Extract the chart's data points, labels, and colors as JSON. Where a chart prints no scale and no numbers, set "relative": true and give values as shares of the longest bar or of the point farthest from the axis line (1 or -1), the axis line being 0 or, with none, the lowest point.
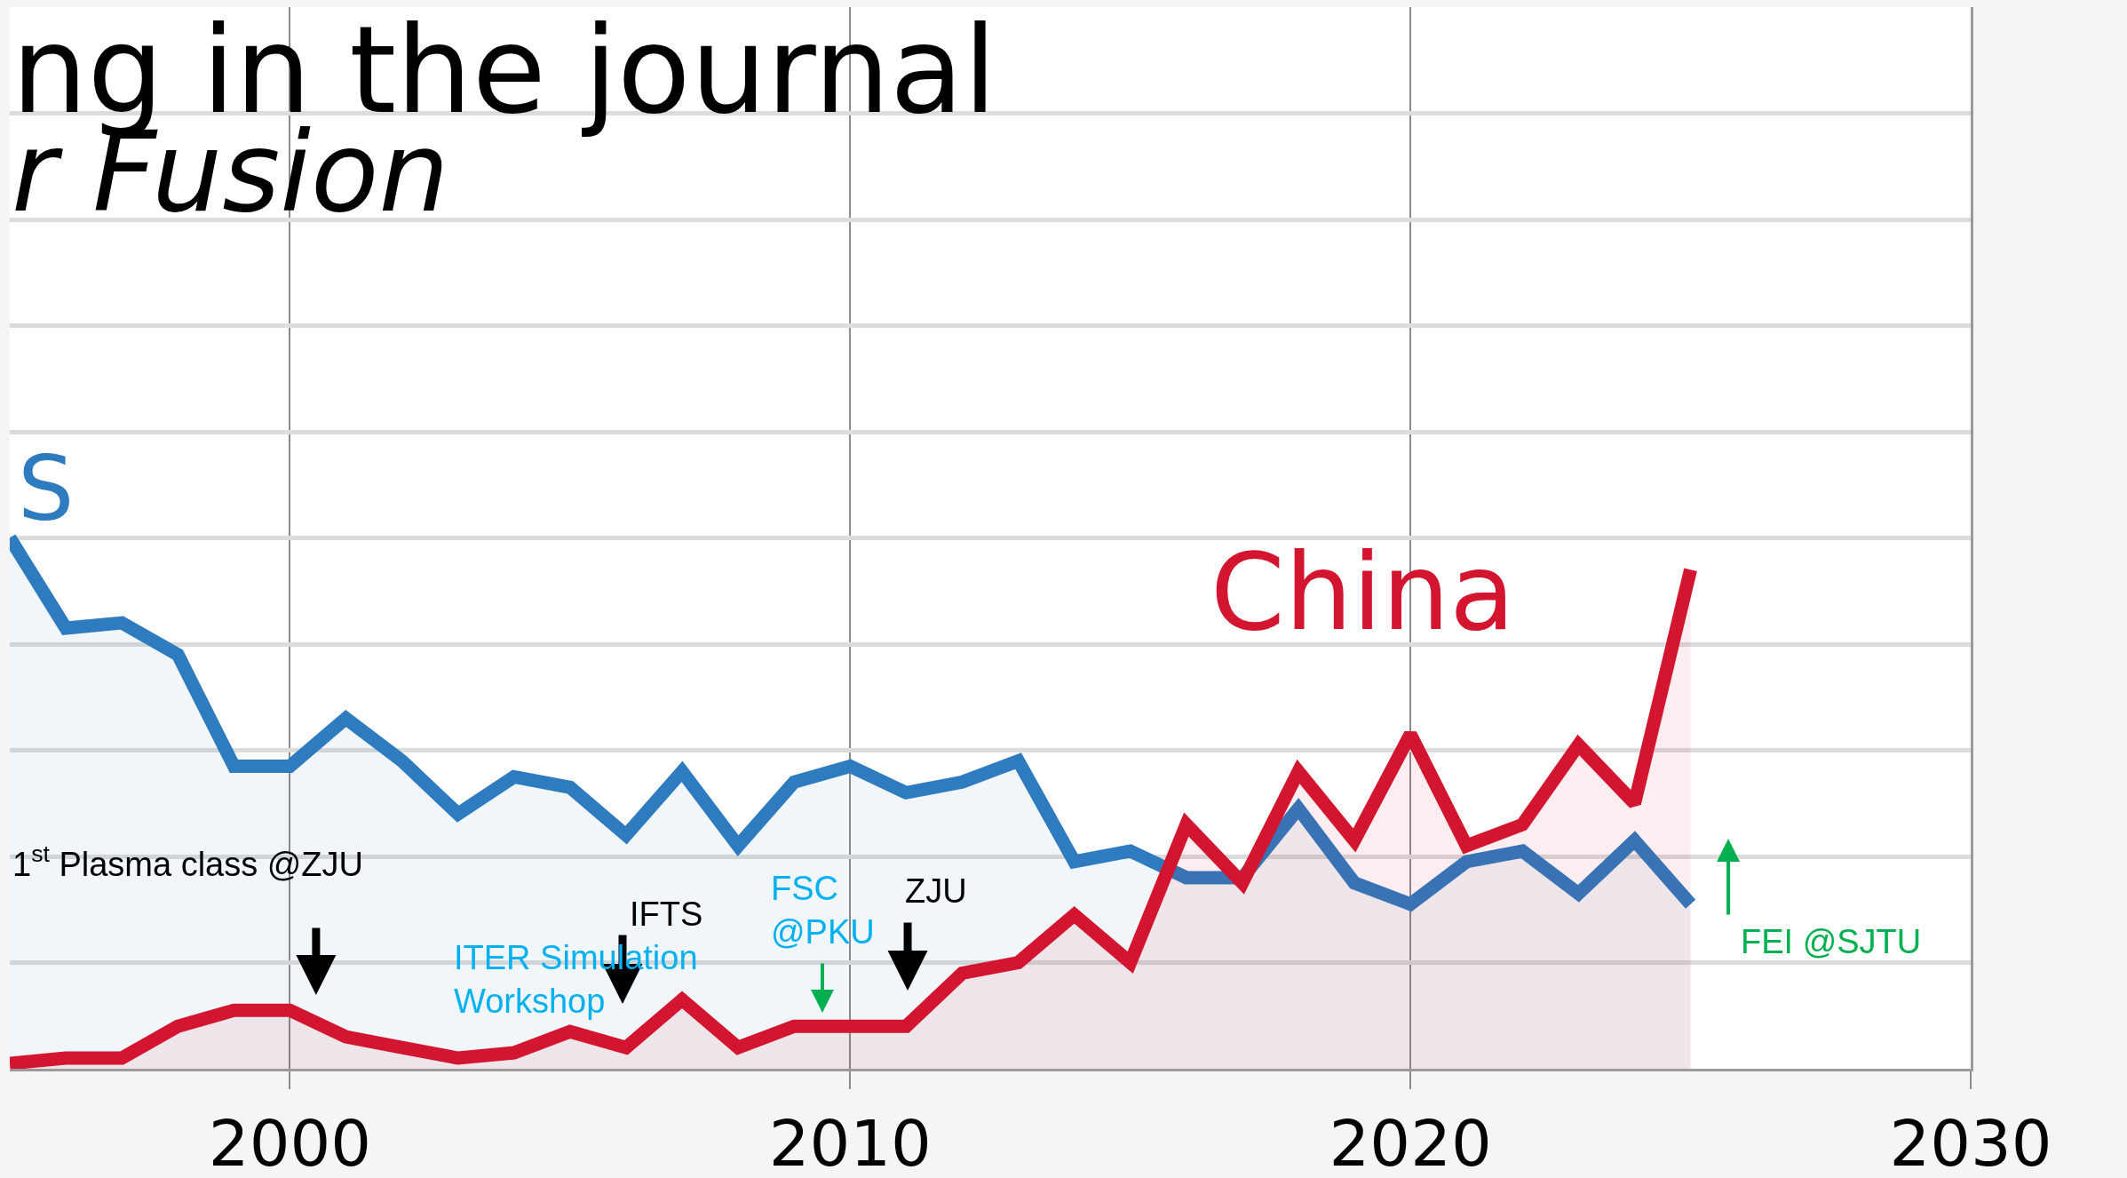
{
  "chart_data": {
    "type": "area",
    "title": "ng in the journal",
    "subtitle": "r Fusion",
    "relative": true,
    "x": [
      1995,
      1996,
      1997,
      1998,
      1999,
      2000,
      2001,
      2002,
      2003,
      2004,
      2005,
      2006,
      2007,
      2008,
      2009,
      2010,
      2011,
      2012,
      2013,
      2014,
      2015,
      2016,
      2017,
      2018,
      2019,
      2020,
      2021,
      2022,
      2023,
      2024,
      2025
    ],
    "xlim": [
      1995,
      2030
    ],
    "xticks": [
      2000,
      2010,
      2020,
      2030
    ],
    "grid": true,
    "tick_labels": "x",
    "series": [
      {
        "name": "S",
        "color": "#2f7bbf",
        "values": [
          1.0,
          0.83,
          0.84,
          0.78,
          0.57,
          0.57,
          0.66,
          0.58,
          0.48,
          0.55,
          0.53,
          0.44,
          0.56,
          0.42,
          0.54,
          0.57,
          0.52,
          0.54,
          0.58,
          0.39,
          0.41,
          0.36,
          0.36,
          0.49,
          0.35,
          0.31,
          0.39,
          0.41,
          0.33,
          0.43,
          0.31
        ]
      },
      {
        "name": "China",
        "color": "#d41530",
        "values": [
          0.01,
          0.02,
          0.02,
          0.08,
          0.11,
          0.11,
          0.06,
          0.04,
          0.02,
          0.03,
          0.07,
          0.04,
          0.13,
          0.04,
          0.08,
          0.08,
          0.08,
          0.18,
          0.2,
          0.29,
          0.2,
          0.46,
          0.35,
          0.56,
          0.43,
          0.63,
          0.42,
          0.46,
          0.61,
          0.5,
          0.94
        ]
      }
    ],
    "annotations": [
      "1$^{st}$ Plasma class @ZJU",
      "IFTS",
      "ITER Simulation\nWorkshop",
      "FSC\n@PKU",
      "ZJU",
      "FEI @SJTU"
    ]
  }
}
